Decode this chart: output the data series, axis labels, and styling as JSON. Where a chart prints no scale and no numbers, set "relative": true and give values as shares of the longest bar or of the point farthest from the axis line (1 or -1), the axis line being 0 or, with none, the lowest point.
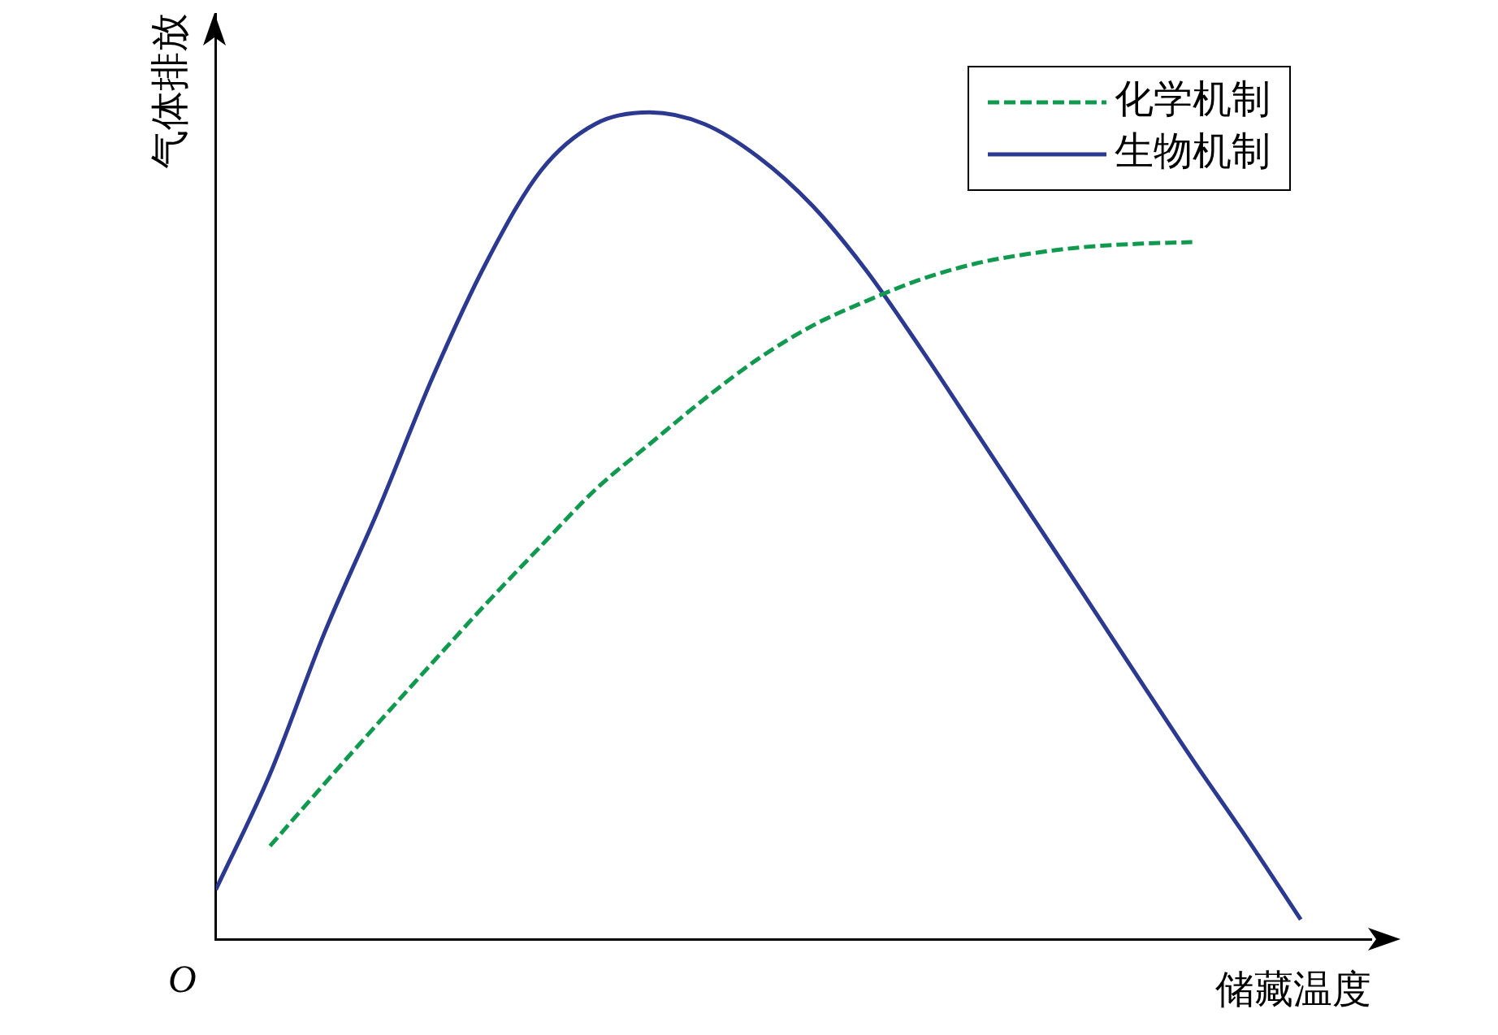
{
  "chart_data": {
    "type": "line",
    "relative": true,
    "xlabel": "储藏温度",
    "ylabel": "气体排放",
    "annotations": [
      "O"
    ],
    "legend": "top right",
    "grid": false,
    "marker": "none",
    "categories": [
      null,
      null,
      null,
      null,
      null,
      null,
      null,
      null,
      null,
      null,
      null,
      null,
      null,
      null,
      null,
      null,
      null,
      null,
      null,
      null,
      null
    ],
    "series": [
      {
        "name": "化学机制",
        "color": "#119a4f",
        "line_style": "dashed",
        "values": [
          null,
          0.113,
          0.188,
          0.262,
          0.335,
          0.407,
          0.476,
          0.544,
          0.599,
          0.653,
          0.702,
          0.742,
          0.772,
          0.798,
          0.817,
          0.829,
          0.837,
          0.841,
          0.843,
          null,
          null
        ]
      },
      {
        "name": "生物机制",
        "color": "#2b3990",
        "line_style": "solid",
        "values": [
          0.06,
          0.2,
          0.37,
          0.52,
          0.68,
          0.82,
          0.93,
          0.986,
          1.0,
          0.986,
          0.946,
          0.887,
          0.808,
          0.714,
          0.615,
          0.516,
          0.417,
          0.317,
          0.218,
          0.123,
          0.024
        ]
      }
    ]
  }
}
